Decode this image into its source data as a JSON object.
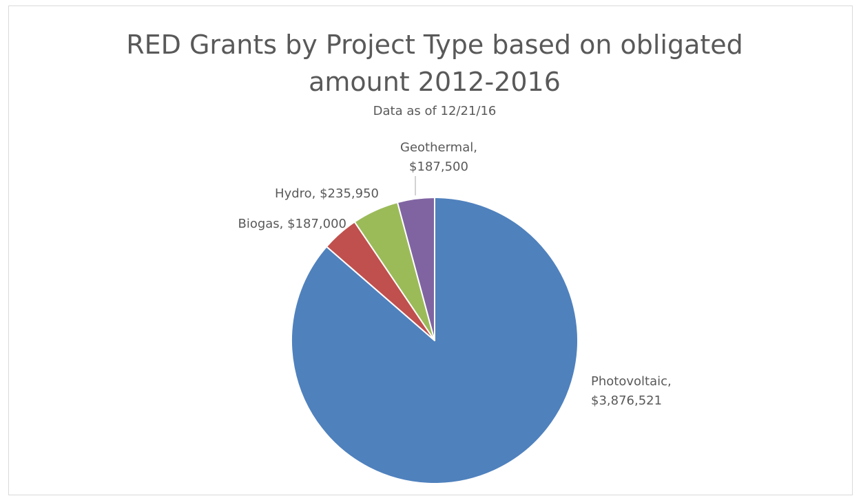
{
  "chart_data": {
    "type": "pie",
    "title_lines": [
      "RED Grants by Project Type based on obligated",
      "amount 2012-2016"
    ],
    "subtitle": "Data as of 12/21/16",
    "slices": [
      {
        "category": "Photovoltaic",
        "value": 3876521,
        "value_label": "$3,876,521",
        "color": "#4F81BD"
      },
      {
        "category": "Biogas",
        "value": 187000,
        "value_label": "$187,000",
        "color": "#C0504D"
      },
      {
        "category": "Hydro",
        "value": 235950,
        "value_label": "$235,950",
        "color": "#9BBB59"
      },
      {
        "category": "Geothermal",
        "value": 187500,
        "value_label": "$187,500",
        "color": "#8064A2"
      }
    ],
    "start_angle": "12 o'clock",
    "direction": "clockwise",
    "legend": "none"
  }
}
